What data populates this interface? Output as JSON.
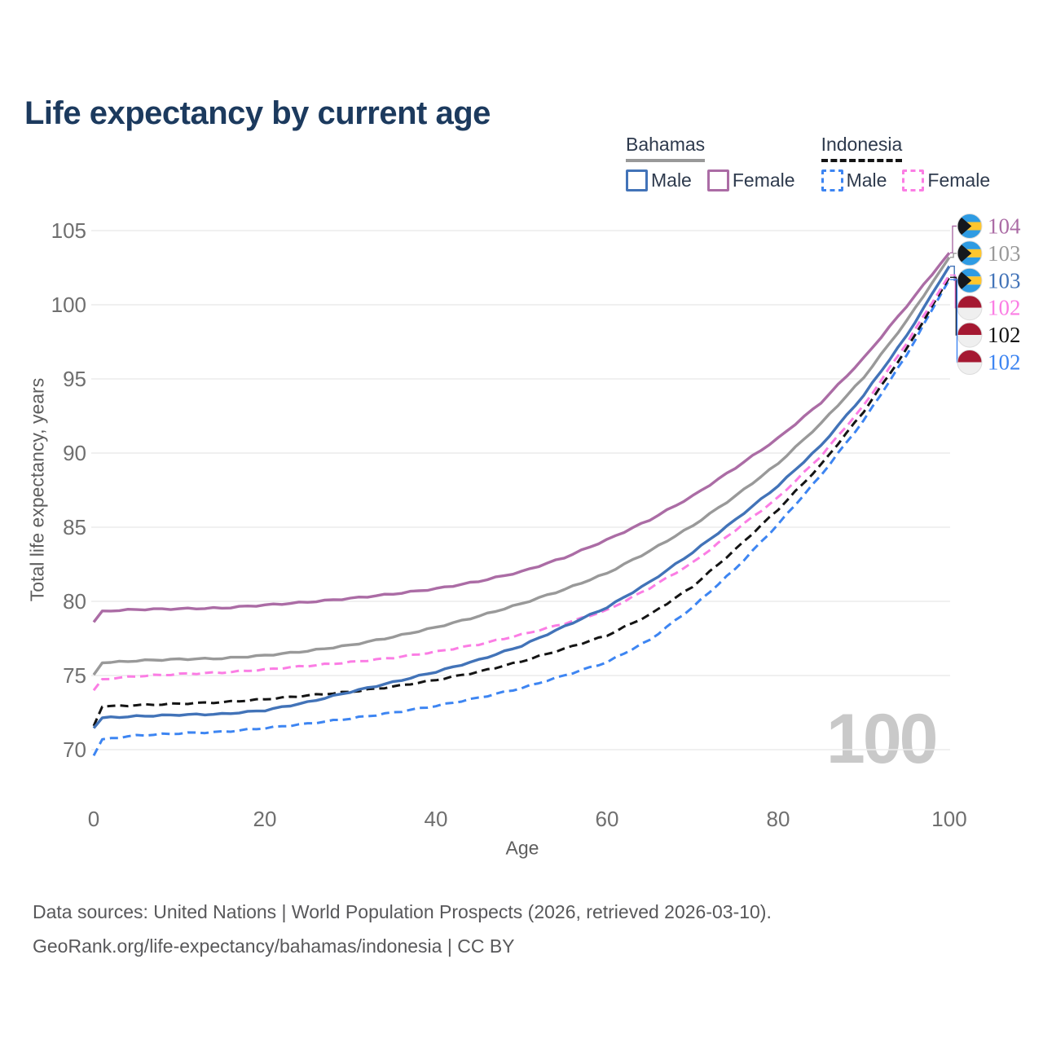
{
  "title": "Life expectancy by current age",
  "watermark": "100",
  "legend": {
    "groups": [
      {
        "name": "Bahamas",
        "line_style": "solid",
        "underline_color": "#999999",
        "items": [
          {
            "label": "Male",
            "color": "#4273B8",
            "dashed": false
          },
          {
            "label": "Female",
            "color": "#AB6CA5",
            "dashed": false
          }
        ]
      },
      {
        "name": "Indonesia",
        "line_style": "dashed",
        "underline_color": "#141414",
        "items": [
          {
            "label": "Male",
            "color": "#3D85F2",
            "dashed": true
          },
          {
            "label": "Female",
            "color": "#FB7DE4",
            "dashed": true
          }
        ]
      }
    ]
  },
  "chart_data": {
    "type": "line",
    "title": "Life expectancy by current age",
    "xlabel": "Age",
    "ylabel": "Total life expectancy, years",
    "x_ticks": [
      0,
      20,
      40,
      60,
      80,
      100
    ],
    "y_ticks": [
      70,
      75,
      80,
      85,
      90,
      95,
      100,
      105
    ],
    "xlim": [
      0,
      100
    ],
    "ylim": [
      68.5,
      106
    ],
    "grid": "horizontal",
    "legend_position": "top-right",
    "x": [
      0,
      1,
      5,
      10,
      15,
      20,
      25,
      30,
      35,
      40,
      45,
      50,
      55,
      60,
      65,
      70,
      75,
      80,
      85,
      90,
      95,
      100
    ],
    "series": [
      {
        "name": "Bahamas — Female",
        "country": "Bahamas",
        "sex": "Female",
        "style": "solid",
        "color": "#AB6CA5",
        "end_label": "104",
        "flag": "bahamas",
        "values": [
          78.6,
          79.35,
          79.45,
          79.5,
          79.55,
          79.75,
          79.95,
          80.2,
          80.5,
          80.85,
          81.35,
          82.0,
          82.95,
          84.15,
          85.5,
          87.1,
          89.0,
          91.0,
          93.4,
          96.4,
          99.9,
          103.5
        ]
      },
      {
        "name": "Bahamas — Both sexes",
        "country": "Bahamas",
        "sex": "Both",
        "style": "solid",
        "color": "#999999",
        "end_label": "103",
        "flag": "bahamas",
        "values": [
          75.05,
          75.85,
          76.0,
          76.1,
          76.15,
          76.35,
          76.65,
          77.05,
          77.6,
          78.25,
          79.0,
          79.85,
          80.8,
          81.9,
          83.4,
          85.1,
          87.1,
          89.3,
          92.0,
          95.1,
          98.9,
          103.2
        ]
      },
      {
        "name": "Bahamas — Male",
        "country": "Bahamas",
        "sex": "Male",
        "style": "solid",
        "color": "#4273B8",
        "end_label": "103",
        "flag": "bahamas",
        "values": [
          71.45,
          72.15,
          72.25,
          72.35,
          72.4,
          72.65,
          73.2,
          73.9,
          74.55,
          75.25,
          76.05,
          77.0,
          78.3,
          79.6,
          81.3,
          83.3,
          85.5,
          87.8,
          90.5,
          93.9,
          97.9,
          102.6
        ]
      },
      {
        "name": "Indonesia — Female",
        "country": "Indonesia",
        "sex": "Female",
        "style": "dashed",
        "color": "#FB7DE4",
        "end_label": "102",
        "flag": "indonesia",
        "values": [
          74.0,
          74.75,
          74.95,
          75.1,
          75.2,
          75.4,
          75.65,
          75.9,
          76.2,
          76.6,
          77.1,
          77.75,
          78.5,
          79.4,
          80.9,
          82.6,
          84.8,
          87.0,
          89.8,
          93.2,
          97.4,
          102.0
        ]
      },
      {
        "name": "Indonesia — Both sexes",
        "country": "Indonesia",
        "sex": "Both",
        "style": "dashed",
        "color": "#141414",
        "end_label": "102",
        "flag": "indonesia",
        "values": [
          71.6,
          72.9,
          73.0,
          73.1,
          73.2,
          73.4,
          73.65,
          73.9,
          74.25,
          74.7,
          75.25,
          75.95,
          76.8,
          77.7,
          79.1,
          81.0,
          83.5,
          86.2,
          89.2,
          92.8,
          97.0,
          101.85
        ]
      },
      {
        "name": "Indonesia — Male",
        "country": "Indonesia",
        "sex": "Male",
        "style": "dashed",
        "color": "#3D85F2",
        "end_label": "102",
        "flag": "indonesia",
        "values": [
          69.6,
          70.7,
          70.95,
          71.1,
          71.2,
          71.45,
          71.75,
          72.1,
          72.5,
          72.95,
          73.5,
          74.15,
          75.0,
          75.9,
          77.4,
          79.6,
          82.2,
          85.2,
          88.5,
          92.2,
          96.6,
          101.7
        ]
      }
    ],
    "flag_colors": {
      "bahamas_aqua": "#2E9BE3",
      "bahamas_gold": "#FFC62E",
      "bahamas_black": "#15181D",
      "indonesia_red": "#A51932",
      "indonesia_white": "#EFEFEF"
    }
  },
  "colors": {
    "title": "#1C3A5E",
    "gridline": "#ECECEC",
    "tick_label": "#6F6F6F",
    "axis_title": "#5E5E5E",
    "watermark": "#C9C9C9",
    "footer": "#58585A"
  },
  "footer": {
    "line1": "Data sources: United Nations | World Population Prospects (2026, retrieved 2026-03-10).",
    "line2": "GeoRank.org/life-expectancy/bahamas/indonesia | CC BY"
  }
}
